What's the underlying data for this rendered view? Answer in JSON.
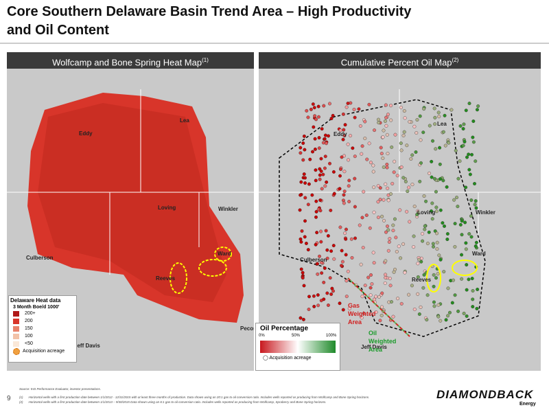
{
  "header": {
    "title_line1": "Core Southern Delaware Basin Trend Area – High Productivity",
    "title_line2": "and Oil Content"
  },
  "left_panel": {
    "title": "Wolfcamp and Bone Spring Heat Map",
    "title_note": "(1)",
    "labels": [
      "Eddy",
      "Lea",
      "Loving",
      "Winkler",
      "Culberson",
      "Reeves",
      "Ward",
      "Pecos",
      "Jeff Davis"
    ],
    "legend": {
      "title": "Delaware Heat data",
      "subtitle": "3 Month Boe/d 1000'",
      "items": [
        "200+",
        "200",
        "150",
        "100",
        "<50"
      ],
      "acreage": "Acquisition acreage"
    }
  },
  "right_panel": {
    "title": "Cumulative Percent Oil Map",
    "title_note": "(2)",
    "labels": [
      "Eddy",
      "Lea",
      "Loving",
      "Winkler",
      "Culberson",
      "Reeves",
      "Ward",
      "Jeff Davis"
    ],
    "gas_area": [
      "Gas",
      "Weighted",
      "Area"
    ],
    "oil_area": [
      "Oil",
      "Weighted",
      "Area"
    ],
    "legend": {
      "title": "Oil Percentage",
      "ticks": [
        "0%",
        "50%",
        "100%"
      ],
      "acreage": "Acquisition acreage"
    }
  },
  "footer": {
    "page": "9",
    "source": "Source: IHS Performance Evaluator, investor presentations.",
    "notes": [
      {
        "mark": "(1)",
        "text": "Horizontal wells with a first production date between 1/1/2012 - 12/31/2015 with at least three months of production. Data shown using an 20:1 gas to oil conversion ratio. Includes wells reported as producing from Wolfcamp and Bone Spring horizons."
      },
      {
        "mark": "(2)",
        "text": "Horizontal wells with a first production date between 1/1/2013 – 9/30/2015 Data shown using an 6:1 gas to oil conversion ratio. Includes wells reported as producing from Wolfcamp, Spraberry and Bone Spring horizons."
      }
    ],
    "logo": "DIAMONDBACK",
    "logo_sub": "Energy"
  }
}
